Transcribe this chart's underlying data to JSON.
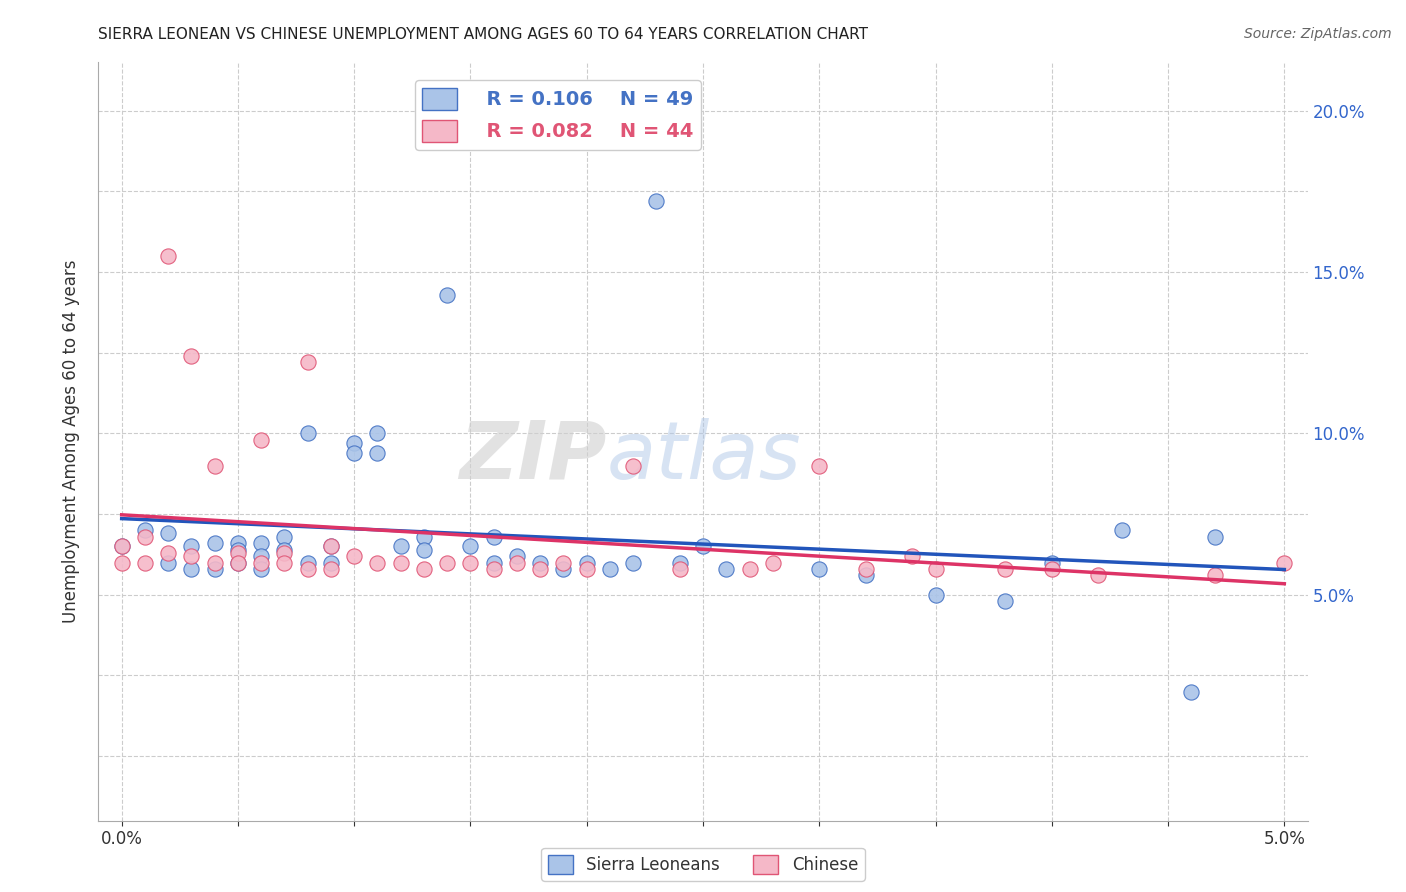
{
  "title": "SIERRA LEONEAN VS CHINESE UNEMPLOYMENT AMONG AGES 60 TO 64 YEARS CORRELATION CHART",
  "source": "Source: ZipAtlas.com",
  "ylabel": "Unemployment Among Ages 60 to 64 years",
  "xlim": [
    -0.001,
    0.051
  ],
  "ylim": [
    -0.02,
    0.215
  ],
  "xtick_positions": [
    0.0,
    0.005,
    0.01,
    0.015,
    0.02,
    0.025,
    0.03,
    0.035,
    0.04,
    0.045,
    0.05
  ],
  "xticklabels": [
    "0.0%",
    "",
    "",
    "",
    "",
    "",
    "",
    "",
    "",
    "",
    "5.0%"
  ],
  "ytick_positions": [
    0.0,
    0.025,
    0.05,
    0.075,
    0.1,
    0.125,
    0.15,
    0.175,
    0.2
  ],
  "yticklabels": [
    "",
    "",
    "5.0%",
    "",
    "10.0%",
    "",
    "15.0%",
    "",
    "20.0%"
  ],
  "blue_color": "#aac4e8",
  "pink_color": "#f5b8c8",
  "blue_edge_color": "#4472c4",
  "pink_edge_color": "#e05575",
  "blue_line_color": "#2255bb",
  "pink_line_color": "#dd3366",
  "legend_r_blue": "R = 0.106",
  "legend_n_blue": "N = 49",
  "legend_r_pink": "R = 0.082",
  "legend_n_pink": "N = 44",
  "watermark_zip": "ZIP",
  "watermark_atlas": "atlas",
  "background_color": "#ffffff",
  "grid_color": "#cccccc",
  "blue_scatter_x": [
    0.0,
    0.001,
    0.002,
    0.002,
    0.003,
    0.003,
    0.004,
    0.004,
    0.005,
    0.005,
    0.005,
    0.006,
    0.006,
    0.006,
    0.007,
    0.007,
    0.008,
    0.008,
    0.009,
    0.009,
    0.01,
    0.01,
    0.011,
    0.011,
    0.012,
    0.013,
    0.013,
    0.014,
    0.015,
    0.016,
    0.016,
    0.017,
    0.018,
    0.019,
    0.02,
    0.021,
    0.022,
    0.023,
    0.024,
    0.025,
    0.026,
    0.03,
    0.032,
    0.035,
    0.038,
    0.04,
    0.043,
    0.046,
    0.047
  ],
  "blue_scatter_y": [
    0.065,
    0.07,
    0.069,
    0.06,
    0.065,
    0.058,
    0.066,
    0.058,
    0.066,
    0.064,
    0.06,
    0.066,
    0.062,
    0.058,
    0.068,
    0.064,
    0.1,
    0.06,
    0.065,
    0.06,
    0.097,
    0.094,
    0.1,
    0.094,
    0.065,
    0.068,
    0.064,
    0.143,
    0.065,
    0.068,
    0.06,
    0.062,
    0.06,
    0.058,
    0.06,
    0.058,
    0.06,
    0.172,
    0.06,
    0.065,
    0.058,
    0.058,
    0.056,
    0.05,
    0.048,
    0.06,
    0.07,
    0.02,
    0.068
  ],
  "pink_scatter_x": [
    0.0,
    0.0,
    0.001,
    0.001,
    0.002,
    0.002,
    0.003,
    0.003,
    0.004,
    0.004,
    0.005,
    0.005,
    0.006,
    0.006,
    0.007,
    0.007,
    0.008,
    0.008,
    0.009,
    0.009,
    0.01,
    0.011,
    0.012,
    0.013,
    0.014,
    0.015,
    0.016,
    0.017,
    0.018,
    0.019,
    0.02,
    0.022,
    0.024,
    0.027,
    0.028,
    0.03,
    0.032,
    0.034,
    0.035,
    0.038,
    0.04,
    0.042,
    0.047,
    0.05
  ],
  "pink_scatter_y": [
    0.065,
    0.06,
    0.068,
    0.06,
    0.063,
    0.155,
    0.062,
    0.124,
    0.06,
    0.09,
    0.063,
    0.06,
    0.06,
    0.098,
    0.063,
    0.06,
    0.122,
    0.058,
    0.065,
    0.058,
    0.062,
    0.06,
    0.06,
    0.058,
    0.06,
    0.06,
    0.058,
    0.06,
    0.058,
    0.06,
    0.058,
    0.09,
    0.058,
    0.058,
    0.06,
    0.09,
    0.058,
    0.062,
    0.058,
    0.058,
    0.058,
    0.056,
    0.056,
    0.06
  ]
}
